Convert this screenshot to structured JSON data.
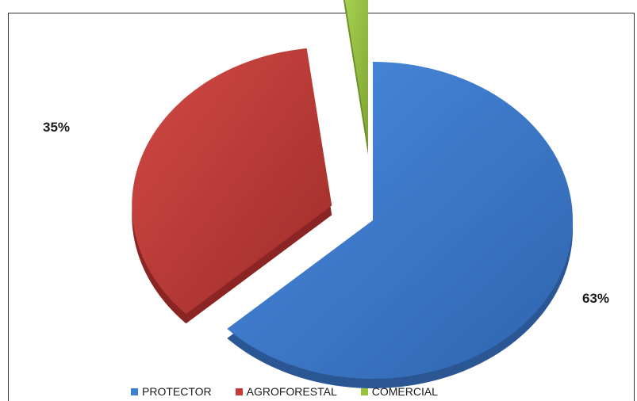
{
  "chart_data": {
    "type": "pie",
    "title": "",
    "categories": [
      "PROTECTOR",
      "AGROFORESTAL",
      "COMERCIAL"
    ],
    "values": [
      63,
      35,
      2
    ],
    "data_labels": [
      "63%",
      "35%",
      ""
    ],
    "exploded": true,
    "style": "3d",
    "legend_position": "bottom"
  },
  "colors": {
    "PROTECTOR": "#3f7fcf",
    "AGROFORESTAL": "#c63a37",
    "COMERCIAL": "#96c33d"
  },
  "legend": {
    "items": [
      {
        "label": "PROTECTOR",
        "color": "#3f7fcf"
      },
      {
        "label": "AGROFORESTAL",
        "color": "#c63a37"
      },
      {
        "label": "COMERCIAL",
        "color": "#96c33d"
      }
    ]
  }
}
